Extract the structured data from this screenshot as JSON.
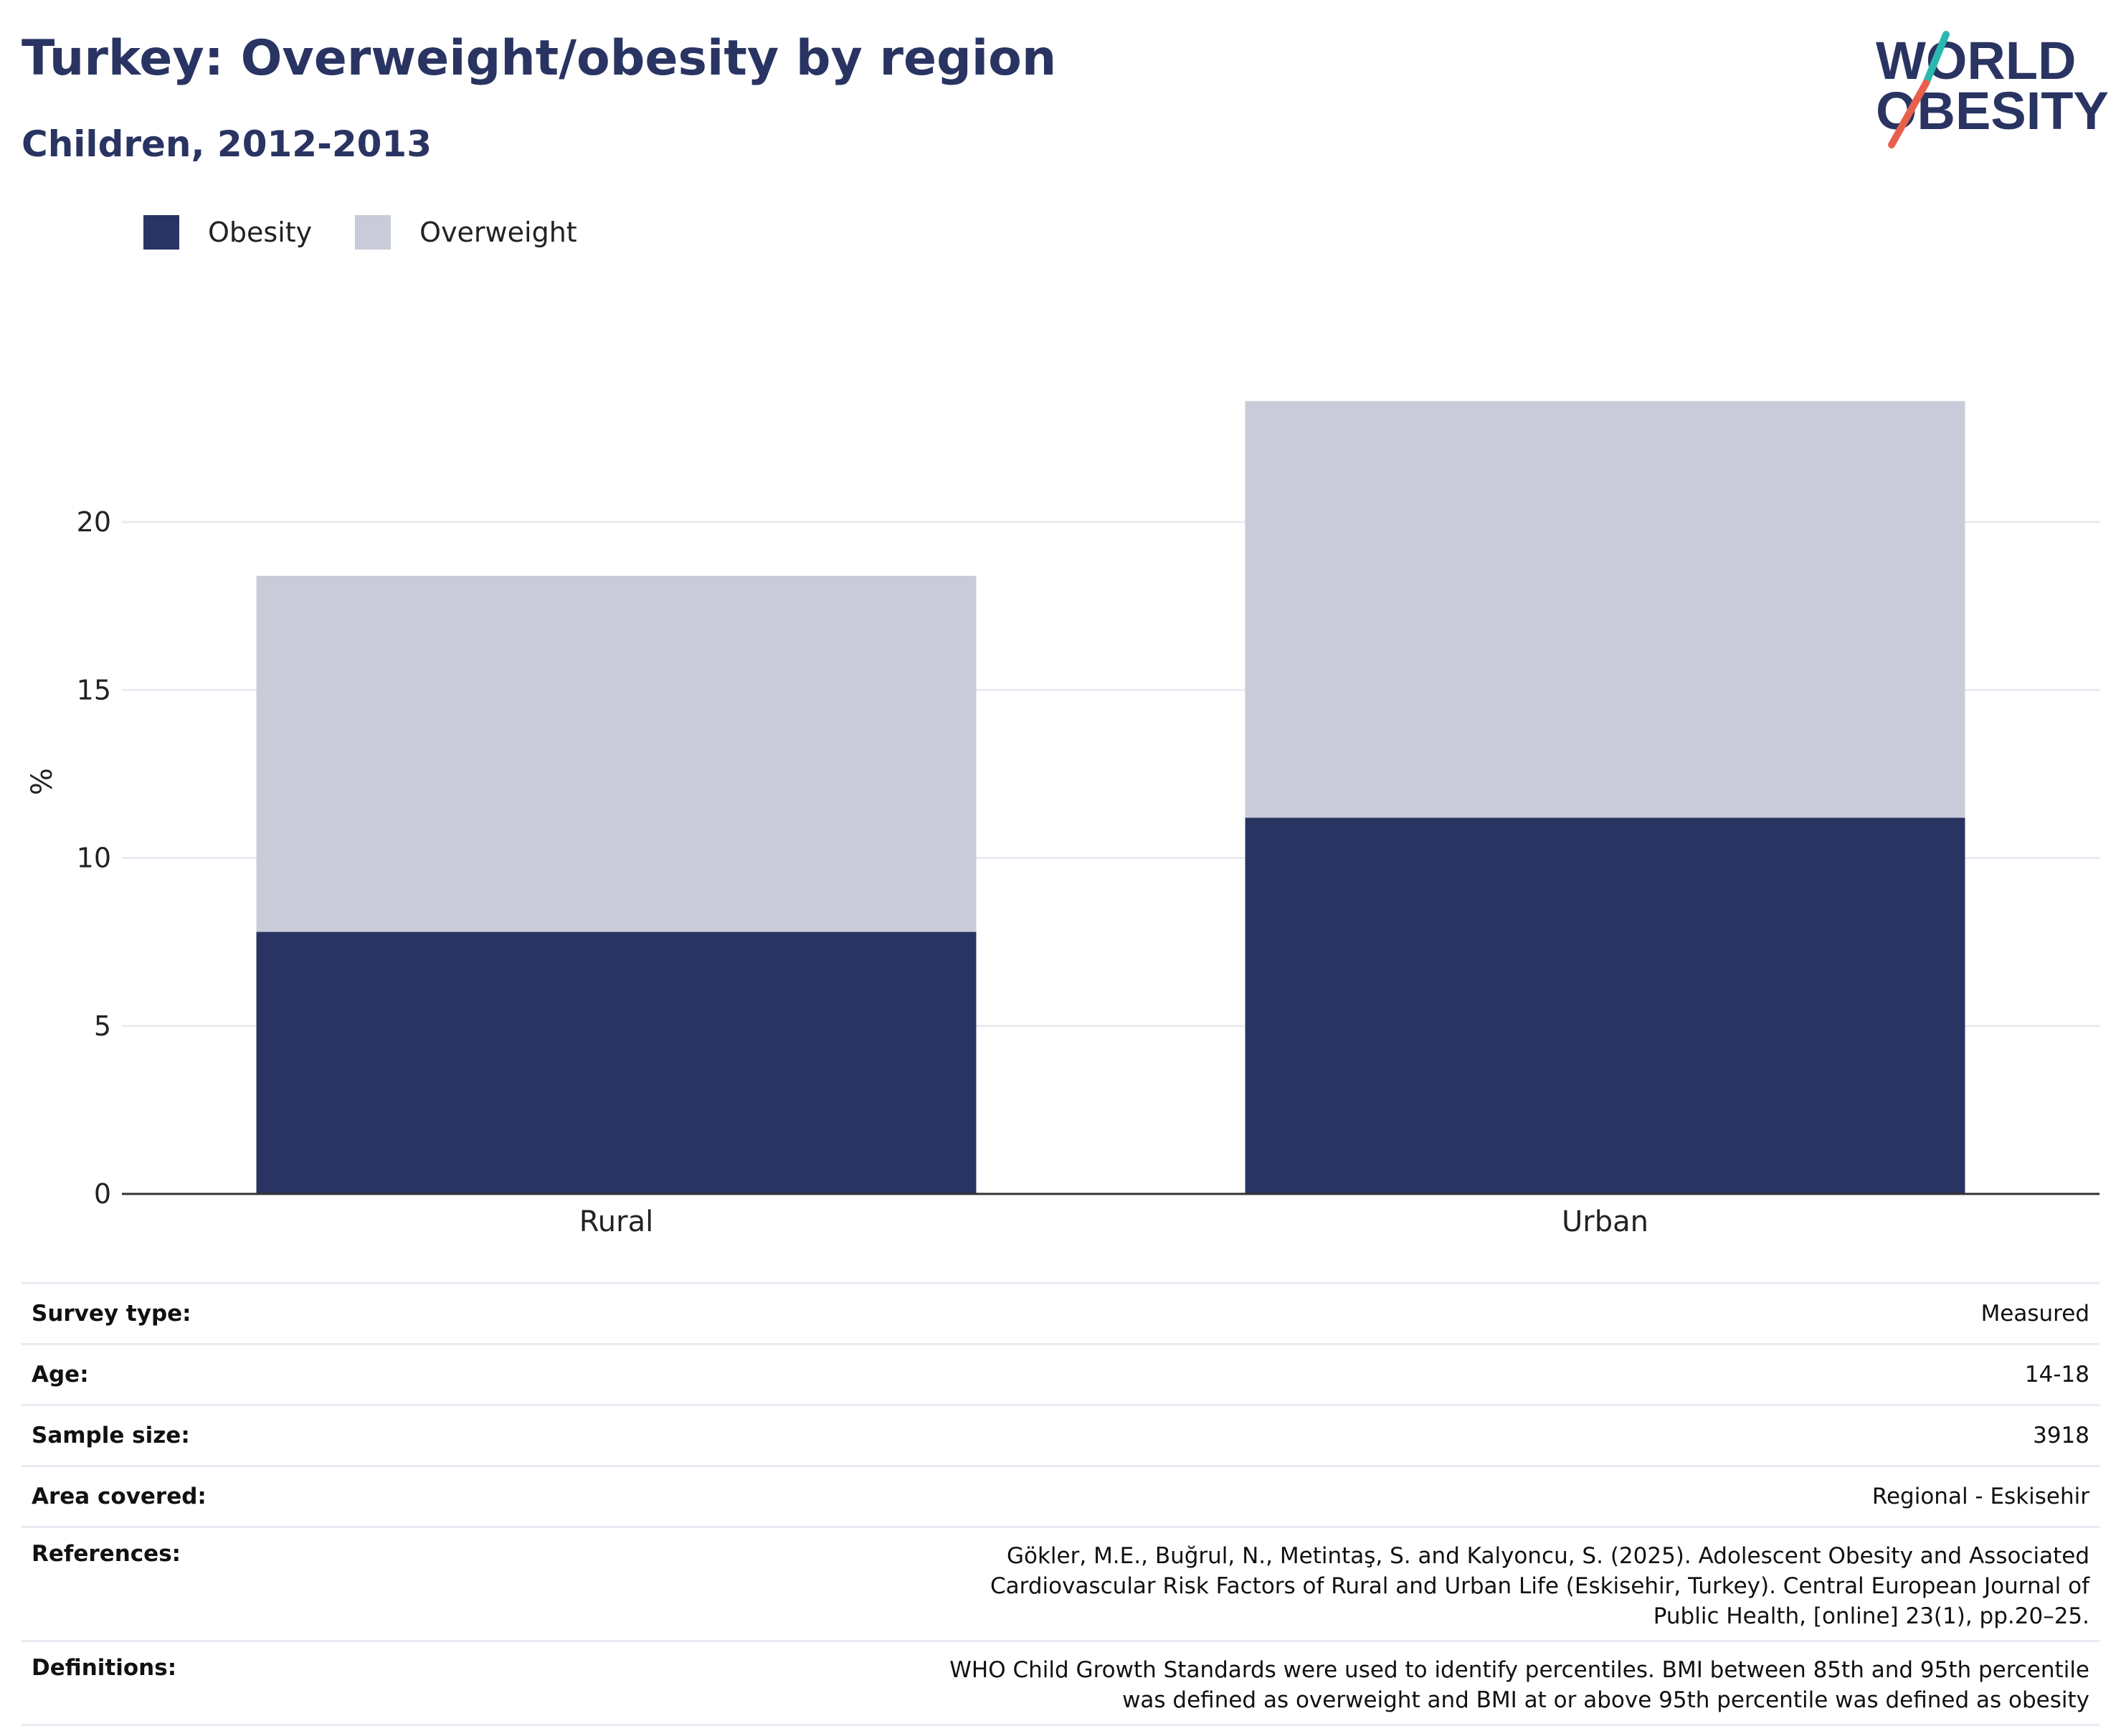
{
  "header": {
    "title": "Turkey: Overweight/obesity by region",
    "subtitle": "Children, 2012-2013"
  },
  "logo": {
    "line1": "WORLD",
    "line2": "OBESITY",
    "accent_colors": [
      "#2ab8b0",
      "#e8604c"
    ]
  },
  "colors": {
    "obesity": "#293462",
    "overweight": "#c9ccd8",
    "grid": "#e9ebf2",
    "axis": "#333333"
  },
  "legend": [
    {
      "label": "Obesity",
      "color": "#293462"
    },
    {
      "label": "Overweight",
      "color": "#c9ccd8"
    }
  ],
  "chart_data": {
    "type": "bar",
    "stacked": true,
    "categories": [
      "Rural",
      "Urban"
    ],
    "series": [
      {
        "name": "Obesity",
        "values": [
          7.8,
          11.2
        ],
        "color": "#293462"
      },
      {
        "name": "Overweight",
        "values": [
          10.6,
          12.4
        ],
        "color": "#c9ccd8"
      }
    ],
    "ylabel": "%",
    "yticks": [
      0,
      5,
      10,
      15,
      20
    ],
    "ylim": [
      0,
      25
    ],
    "grid": true,
    "legend_position": "top-left"
  },
  "meta": [
    {
      "key": "Survey type:",
      "value": "Measured"
    },
    {
      "key": "Age:",
      "value": "14-18"
    },
    {
      "key": "Sample size:",
      "value": "3918"
    },
    {
      "key": "Area covered:",
      "value": "Regional - Eskisehir"
    },
    {
      "key": "References:",
      "value": "Gökler, M.E., Buğrul, N., Metintaş, S. and Kalyoncu, S. (2025). Adolescent Obesity and Associated Cardiovascular Risk Factors of Rural and Urban Life (Eskisehir, Turkey). Central European Journal of Public Health, [online] 23(1), pp.20–25."
    },
    {
      "key": "Definitions:",
      "value": "WHO Child Growth Standards were used to identify percentiles. BMI between 85th and 95th percentile was defined as overweight and BMI at or above 95th percentile was defined as obesity"
    }
  ]
}
